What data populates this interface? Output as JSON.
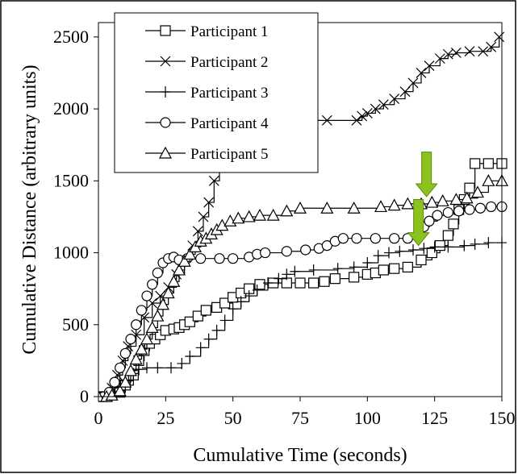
{
  "chart_data": {
    "type": "scatter",
    "title": "",
    "xlabel": "Cumulative Time (seconds)",
    "ylabel": "Cumulative Distance (arbitrary units)",
    "xlim": [
      0,
      150
    ],
    "ylim": [
      0,
      2600
    ],
    "xticks": [
      0,
      25,
      50,
      75,
      100,
      125,
      150
    ],
    "yticks": [
      0,
      500,
      1000,
      1500,
      2000,
      2500
    ],
    "grid": false,
    "legend_position": "top-left",
    "annotations": [
      {
        "type": "arrow",
        "color": "#8cc21d",
        "x": 122,
        "y_from": 1700,
        "y_to": 1390
      },
      {
        "type": "arrow",
        "color": "#8cc21d",
        "x": 119,
        "y_from": 1370,
        "y_to": 1050
      }
    ],
    "series": [
      {
        "name": "Participant 1",
        "marker": "square",
        "step": true,
        "points": [
          [
            0,
            0
          ],
          [
            3,
            0
          ],
          [
            5,
            15
          ],
          [
            8,
            30
          ],
          [
            10,
            80
          ],
          [
            13,
            150
          ],
          [
            15,
            250
          ],
          [
            17,
            320
          ],
          [
            19,
            370
          ],
          [
            21,
            400
          ],
          [
            23,
            430
          ],
          [
            25,
            460
          ],
          [
            28,
            470
          ],
          [
            30,
            480
          ],
          [
            32,
            500
          ],
          [
            34,
            520
          ],
          [
            37,
            560
          ],
          [
            40,
            600
          ],
          [
            44,
            620
          ],
          [
            47,
            650
          ],
          [
            50,
            690
          ],
          [
            53,
            720
          ],
          [
            56,
            750
          ],
          [
            60,
            780
          ],
          [
            65,
            790
          ],
          [
            70,
            790
          ],
          [
            75,
            790
          ],
          [
            80,
            790
          ],
          [
            84,
            800
          ],
          [
            88,
            820
          ],
          [
            95,
            830
          ],
          [
            100,
            850
          ],
          [
            103,
            860
          ],
          [
            106,
            880
          ],
          [
            110,
            890
          ],
          [
            115,
            900
          ],
          [
            120,
            950
          ],
          [
            124,
            1000
          ],
          [
            127,
            1050
          ],
          [
            130,
            1120
          ],
          [
            132,
            1200
          ],
          [
            134,
            1300
          ],
          [
            136,
            1370
          ],
          [
            138,
            1450
          ],
          [
            140,
            1620
          ],
          [
            145,
            1620
          ],
          [
            150,
            1620
          ]
        ]
      },
      {
        "name": "Participant 2",
        "marker": "x",
        "step": true,
        "points": [
          [
            0,
            0
          ],
          [
            3,
            0
          ],
          [
            5,
            60
          ],
          [
            7,
            150
          ],
          [
            9,
            250
          ],
          [
            11,
            350
          ],
          [
            14,
            430
          ],
          [
            17,
            550
          ],
          [
            20,
            650
          ],
          [
            23,
            700
          ],
          [
            26,
            760
          ],
          [
            29,
            850
          ],
          [
            32,
            950
          ],
          [
            35,
            1050
          ],
          [
            37,
            1150
          ],
          [
            39,
            1250
          ],
          [
            41,
            1350
          ],
          [
            43,
            1500
          ],
          [
            45,
            1650
          ],
          [
            47,
            1750
          ],
          [
            49,
            1800
          ],
          [
            51,
            1810
          ],
          [
            56,
            1810
          ],
          [
            62,
            1820
          ],
          [
            66,
            1880
          ],
          [
            70,
            1920
          ],
          [
            75,
            1920
          ],
          [
            85,
            1920
          ],
          [
            96,
            1920
          ],
          [
            98,
            1950
          ],
          [
            100,
            1970
          ],
          [
            103,
            2000
          ],
          [
            106,
            2030
          ],
          [
            110,
            2070
          ],
          [
            114,
            2120
          ],
          [
            117,
            2180
          ],
          [
            120,
            2250
          ],
          [
            123,
            2300
          ],
          [
            127,
            2350
          ],
          [
            130,
            2380
          ],
          [
            133,
            2390
          ],
          [
            138,
            2400
          ],
          [
            143,
            2400
          ],
          [
            146,
            2430
          ],
          [
            149,
            2500
          ]
        ]
      },
      {
        "name": "Participant 3",
        "marker": "plus",
        "step": true,
        "points": [
          [
            0,
            0
          ],
          [
            3,
            0
          ],
          [
            5,
            20
          ],
          [
            8,
            70
          ],
          [
            10,
            110
          ],
          [
            13,
            160
          ],
          [
            15,
            190
          ],
          [
            18,
            200
          ],
          [
            22,
            200
          ],
          [
            27,
            200
          ],
          [
            31,
            230
          ],
          [
            34,
            280
          ],
          [
            38,
            340
          ],
          [
            41,
            400
          ],
          [
            44,
            460
          ],
          [
            47,
            530
          ],
          [
            50,
            610
          ],
          [
            53,
            660
          ],
          [
            56,
            700
          ],
          [
            59,
            740
          ],
          [
            63,
            790
          ],
          [
            67,
            820
          ],
          [
            70,
            850
          ],
          [
            73,
            870
          ],
          [
            80,
            880
          ],
          [
            89,
            890
          ],
          [
            95,
            900
          ],
          [
            100,
            930
          ],
          [
            104,
            980
          ],
          [
            108,
            1000
          ],
          [
            112,
            1010
          ],
          [
            117,
            1020
          ],
          [
            121,
            1030
          ],
          [
            125,
            1040
          ],
          [
            130,
            1040
          ],
          [
            136,
            1050
          ],
          [
            140,
            1060
          ],
          [
            145,
            1070
          ],
          [
            150,
            1070
          ]
        ]
      },
      {
        "name": "Participant 4",
        "marker": "circle",
        "step": true,
        "points": [
          [
            0,
            0
          ],
          [
            2,
            0
          ],
          [
            4,
            30
          ],
          [
            6,
            100
          ],
          [
            8,
            200
          ],
          [
            10,
            300
          ],
          [
            12,
            400
          ],
          [
            14,
            500
          ],
          [
            16,
            600
          ],
          [
            18,
            700
          ],
          [
            20,
            780
          ],
          [
            22,
            860
          ],
          [
            24,
            930
          ],
          [
            26,
            960
          ],
          [
            28,
            970
          ],
          [
            30,
            950
          ],
          [
            33,
            960
          ],
          [
            38,
            960
          ],
          [
            45,
            960
          ],
          [
            50,
            960
          ],
          [
            56,
            970
          ],
          [
            59,
            990
          ],
          [
            62,
            1000
          ],
          [
            70,
            1010
          ],
          [
            77,
            1020
          ],
          [
            82,
            1030
          ],
          [
            85,
            1050
          ],
          [
            88,
            1080
          ],
          [
            91,
            1100
          ],
          [
            96,
            1100
          ],
          [
            103,
            1100
          ],
          [
            110,
            1100
          ],
          [
            115,
            1100
          ],
          [
            119,
            1130
          ],
          [
            121,
            1180
          ],
          [
            123,
            1220
          ],
          [
            126,
            1260
          ],
          [
            130,
            1280
          ],
          [
            134,
            1290
          ],
          [
            138,
            1300
          ],
          [
            142,
            1310
          ],
          [
            146,
            1320
          ],
          [
            150,
            1320
          ]
        ]
      },
      {
        "name": "Participant 5",
        "marker": "triangle",
        "step": true,
        "points": [
          [
            0,
            0
          ],
          [
            3,
            0
          ],
          [
            5,
            10
          ],
          [
            8,
            40
          ],
          [
            10,
            100
          ],
          [
            12,
            180
          ],
          [
            14,
            260
          ],
          [
            16,
            330
          ],
          [
            18,
            400
          ],
          [
            20,
            480
          ],
          [
            22,
            560
          ],
          [
            24,
            640
          ],
          [
            26,
            720
          ],
          [
            28,
            800
          ],
          [
            30,
            880
          ],
          [
            32,
            940
          ],
          [
            34,
            990
          ],
          [
            36,
            1040
          ],
          [
            38,
            1080
          ],
          [
            40,
            1100
          ],
          [
            42,
            1130
          ],
          [
            44,
            1160
          ],
          [
            46,
            1190
          ],
          [
            49,
            1220
          ],
          [
            52,
            1240
          ],
          [
            56,
            1250
          ],
          [
            60,
            1260
          ],
          [
            65,
            1260
          ],
          [
            70,
            1290
          ],
          [
            75,
            1310
          ],
          [
            85,
            1310
          ],
          [
            95,
            1310
          ],
          [
            105,
            1320
          ],
          [
            110,
            1330
          ],
          [
            115,
            1340
          ],
          [
            120,
            1340
          ],
          [
            124,
            1350
          ],
          [
            128,
            1360
          ],
          [
            133,
            1370
          ],
          [
            137,
            1380
          ],
          [
            141,
            1420
          ],
          [
            145,
            1500
          ],
          [
            150,
            1500
          ]
        ]
      }
    ]
  }
}
